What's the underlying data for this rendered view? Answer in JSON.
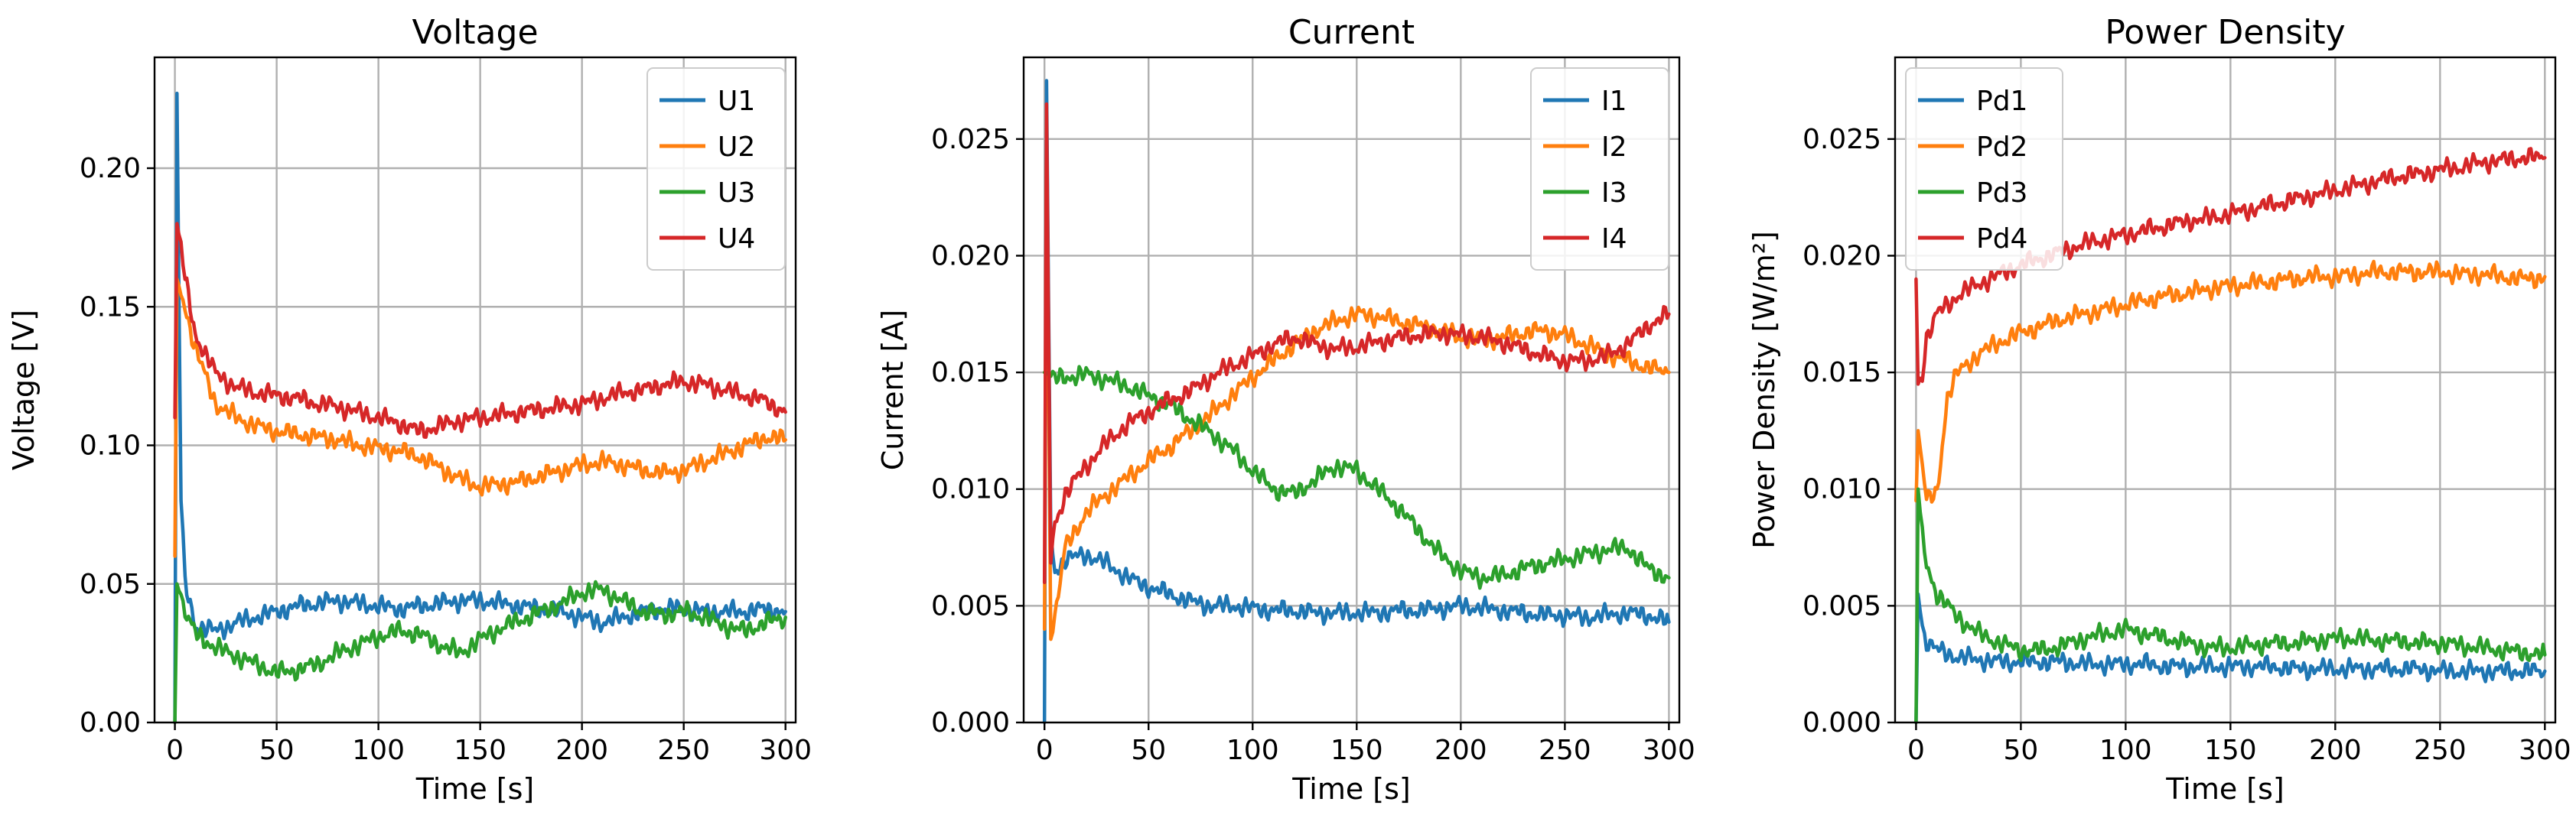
{
  "chart_data": [
    {
      "type": "line",
      "title": "Voltage",
      "xlabel": "Time [s]",
      "ylabel": "Voltage [V]",
      "xlim": [
        -10,
        305
      ],
      "ylim": [
        0,
        0.24
      ],
      "xticks": [
        0,
        50,
        100,
        150,
        200,
        250,
        300
      ],
      "yticks": [
        0.0,
        0.05,
        0.1,
        0.15,
        0.2
      ],
      "ytick_labels": [
        "0.00",
        "0.05",
        "0.10",
        "0.15",
        "0.20"
      ],
      "grid": true,
      "legend": "top-right",
      "series": [
        {
          "name": "U1",
          "color": "#1f77b4",
          "x": [
            0,
            1,
            3,
            5,
            10,
            20,
            30,
            40,
            50,
            60,
            70,
            80,
            90,
            100,
            110,
            120,
            130,
            140,
            150,
            160,
            170,
            180,
            190,
            200,
            210,
            220,
            230,
            240,
            250,
            260,
            270,
            280,
            290,
            300
          ],
          "y": [
            0.0,
            0.227,
            0.08,
            0.05,
            0.035,
            0.033,
            0.036,
            0.038,
            0.04,
            0.042,
            0.043,
            0.044,
            0.043,
            0.042,
            0.041,
            0.042,
            0.043,
            0.044,
            0.044,
            0.043,
            0.042,
            0.041,
            0.04,
            0.038,
            0.036,
            0.038,
            0.04,
            0.041,
            0.041,
            0.04,
            0.04,
            0.04,
            0.041,
            0.04
          ]
        },
        {
          "name": "U2",
          "color": "#ff7f0e",
          "x": [
            0,
            1,
            3,
            5,
            10,
            20,
            30,
            40,
            50,
            60,
            70,
            80,
            90,
            100,
            110,
            120,
            130,
            140,
            150,
            160,
            170,
            180,
            190,
            200,
            210,
            220,
            230,
            240,
            250,
            260,
            270,
            280,
            290,
            300
          ],
          "y": [
            0.06,
            0.16,
            0.155,
            0.15,
            0.135,
            0.115,
            0.11,
            0.107,
            0.105,
            0.104,
            0.103,
            0.102,
            0.1,
            0.099,
            0.098,
            0.096,
            0.092,
            0.088,
            0.085,
            0.086,
            0.087,
            0.089,
            0.091,
            0.093,
            0.094,
            0.093,
            0.091,
            0.09,
            0.091,
            0.094,
            0.097,
            0.1,
            0.103,
            0.102
          ]
        },
        {
          "name": "U3",
          "color": "#2ca02c",
          "x": [
            0,
            1,
            3,
            5,
            10,
            20,
            30,
            40,
            50,
            60,
            70,
            80,
            90,
            100,
            110,
            120,
            130,
            140,
            150,
            160,
            170,
            180,
            190,
            200,
            210,
            220,
            230,
            240,
            250,
            260,
            270,
            280,
            290,
            300
          ],
          "y": [
            0.0,
            0.05,
            0.045,
            0.04,
            0.032,
            0.027,
            0.024,
            0.021,
            0.018,
            0.019,
            0.021,
            0.025,
            0.028,
            0.031,
            0.033,
            0.032,
            0.028,
            0.025,
            0.03,
            0.034,
            0.037,
            0.04,
            0.043,
            0.047,
            0.048,
            0.044,
            0.04,
            0.039,
            0.04,
            0.038,
            0.035,
            0.033,
            0.036,
            0.038
          ]
        },
        {
          "name": "U4",
          "color": "#d62728",
          "x": [
            0,
            1,
            3,
            5,
            10,
            20,
            30,
            40,
            50,
            60,
            70,
            80,
            90,
            100,
            110,
            120,
            130,
            140,
            150,
            160,
            170,
            180,
            190,
            200,
            210,
            220,
            230,
            240,
            250,
            260,
            270,
            280,
            290,
            300
          ],
          "y": [
            0.11,
            0.18,
            0.172,
            0.16,
            0.14,
            0.126,
            0.121,
            0.119,
            0.118,
            0.117,
            0.115,
            0.114,
            0.112,
            0.11,
            0.108,
            0.105,
            0.107,
            0.109,
            0.11,
            0.111,
            0.112,
            0.113,
            0.114,
            0.115,
            0.117,
            0.119,
            0.12,
            0.122,
            0.123,
            0.122,
            0.12,
            0.118,
            0.116,
            0.112
          ]
        }
      ]
    },
    {
      "type": "line",
      "title": "Current",
      "xlabel": "Time [s]",
      "ylabel": "Current [A]",
      "xlim": [
        -10,
        305
      ],
      "ylim": [
        0,
        0.0285
      ],
      "xticks": [
        0,
        50,
        100,
        150,
        200,
        250,
        300
      ],
      "yticks": [
        0.0,
        0.005,
        0.01,
        0.015,
        0.02,
        0.025
      ],
      "ytick_labels": [
        "0.000",
        "0.005",
        "0.010",
        "0.015",
        "0.020",
        "0.025"
      ],
      "grid": true,
      "legend": "top-right",
      "series": [
        {
          "name": "I1",
          "color": "#1f77b4",
          "x": [
            0,
            1,
            3,
            5,
            10,
            20,
            30,
            40,
            50,
            60,
            70,
            80,
            90,
            100,
            110,
            120,
            130,
            140,
            150,
            160,
            170,
            180,
            190,
            200,
            210,
            220,
            230,
            240,
            250,
            260,
            270,
            280,
            290,
            300
          ],
          "y": [
            0.0,
            0.0275,
            0.008,
            0.0065,
            0.007,
            0.0072,
            0.0068,
            0.0062,
            0.0058,
            0.0055,
            0.0052,
            0.005,
            0.005,
            0.0049,
            0.0048,
            0.0048,
            0.0047,
            0.0047,
            0.0047,
            0.0047,
            0.0048,
            0.0048,
            0.0049,
            0.005,
            0.0049,
            0.0048,
            0.0047,
            0.0046,
            0.0046,
            0.0045,
            0.0046,
            0.0047,
            0.0046,
            0.0043
          ]
        },
        {
          "name": "I2",
          "color": "#ff7f0e",
          "x": [
            0,
            1,
            3,
            5,
            10,
            20,
            30,
            40,
            50,
            60,
            70,
            80,
            90,
            100,
            110,
            120,
            130,
            140,
            150,
            160,
            170,
            180,
            190,
            200,
            210,
            220,
            230,
            240,
            250,
            260,
            270,
            280,
            290,
            300
          ],
          "y": [
            0.004,
            0.0255,
            0.004,
            0.0045,
            0.0075,
            0.009,
            0.0098,
            0.0105,
            0.0112,
            0.0118,
            0.0125,
            0.0132,
            0.014,
            0.0148,
            0.0155,
            0.0162,
            0.0168,
            0.0172,
            0.0175,
            0.0174,
            0.0172,
            0.017,
            0.0168,
            0.0165,
            0.0164,
            0.0165,
            0.0167,
            0.0168,
            0.0166,
            0.0162,
            0.0158,
            0.0155,
            0.0152,
            0.015
          ]
        },
        {
          "name": "I3",
          "color": "#2ca02c",
          "x": [
            0,
            1,
            3,
            5,
            10,
            20,
            30,
            40,
            50,
            60,
            70,
            80,
            90,
            100,
            110,
            120,
            130,
            140,
            150,
            160,
            170,
            180,
            190,
            200,
            210,
            220,
            230,
            240,
            250,
            260,
            270,
            280,
            290,
            300
          ],
          "y": [
            0.015,
            0.015,
            0.0148,
            0.0147,
            0.0148,
            0.0149,
            0.0147,
            0.0144,
            0.014,
            0.0136,
            0.013,
            0.0124,
            0.0117,
            0.0108,
            0.01,
            0.0098,
            0.0104,
            0.011,
            0.0108,
            0.01,
            0.0092,
            0.0082,
            0.0072,
            0.0065,
            0.0062,
            0.0063,
            0.0066,
            0.0068,
            0.007,
            0.0072,
            0.0074,
            0.0075,
            0.0066,
            0.0062
          ]
        },
        {
          "name": "I4",
          "color": "#d62728",
          "x": [
            0,
            1,
            3,
            5,
            10,
            20,
            30,
            40,
            50,
            60,
            70,
            80,
            90,
            100,
            110,
            120,
            130,
            140,
            150,
            160,
            170,
            180,
            190,
            200,
            210,
            220,
            230,
            240,
            250,
            260,
            270,
            280,
            290,
            300
          ],
          "y": [
            0.006,
            0.0265,
            0.007,
            0.0085,
            0.0098,
            0.011,
            0.012,
            0.0128,
            0.0133,
            0.0138,
            0.0142,
            0.0148,
            0.0153,
            0.0157,
            0.0162,
            0.0165,
            0.0162,
            0.016,
            0.0161,
            0.0163,
            0.0165,
            0.0166,
            0.0167,
            0.0166,
            0.0165,
            0.0163,
            0.016,
            0.0157,
            0.0155,
            0.0155,
            0.0157,
            0.0162,
            0.017,
            0.0175
          ]
        }
      ]
    },
    {
      "type": "line",
      "title": "Power Density",
      "xlabel": "Time [s]",
      "ylabel": "Power Density [W/m²]",
      "xlim": [
        -10,
        305
      ],
      "ylim": [
        0,
        0.0285
      ],
      "xticks": [
        0,
        50,
        100,
        150,
        200,
        250,
        300
      ],
      "yticks": [
        0.0,
        0.005,
        0.01,
        0.015,
        0.02,
        0.025
      ],
      "ytick_labels": [
        "0.000",
        "0.005",
        "0.010",
        "0.015",
        "0.020",
        "0.025"
      ],
      "grid": true,
      "legend": "top-left",
      "series": [
        {
          "name": "Pd1",
          "color": "#1f77b4",
          "x": [
            0,
            1,
            3,
            5,
            10,
            20,
            30,
            40,
            50,
            60,
            70,
            80,
            90,
            100,
            110,
            120,
            130,
            140,
            150,
            160,
            170,
            180,
            190,
            200,
            210,
            220,
            230,
            240,
            250,
            260,
            270,
            280,
            290,
            300
          ],
          "y": [
            0.0,
            0.0055,
            0.004,
            0.0035,
            0.0031,
            0.0028,
            0.0027,
            0.0026,
            0.0026,
            0.0026,
            0.0026,
            0.0025,
            0.0025,
            0.0025,
            0.0025,
            0.0024,
            0.0024,
            0.0024,
            0.0024,
            0.0024,
            0.0024,
            0.0023,
            0.0023,
            0.0023,
            0.0023,
            0.0023,
            0.0023,
            0.0023,
            0.0022,
            0.0022,
            0.0022,
            0.0022,
            0.0022,
            0.0022
          ]
        },
        {
          "name": "Pd2",
          "color": "#ff7f0e",
          "x": [
            0,
            1,
            3,
            5,
            10,
            15,
            20,
            30,
            40,
            50,
            60,
            70,
            80,
            90,
            100,
            110,
            120,
            130,
            140,
            150,
            160,
            170,
            180,
            190,
            200,
            210,
            220,
            230,
            240,
            250,
            260,
            270,
            280,
            290,
            300
          ],
          "y": [
            0.0095,
            0.0125,
            0.011,
            0.0095,
            0.0098,
            0.014,
            0.015,
            0.0158,
            0.0163,
            0.0167,
            0.017,
            0.0173,
            0.0175,
            0.0177,
            0.0179,
            0.0181,
            0.0183,
            0.0184,
            0.0186,
            0.0187,
            0.0188,
            0.0189,
            0.019,
            0.0191,
            0.0191,
            0.0192,
            0.0193,
            0.0193,
            0.0193,
            0.0193,
            0.0192,
            0.0192,
            0.0191,
            0.019,
            0.0191
          ]
        },
        {
          "name": "Pd3",
          "color": "#2ca02c",
          "x": [
            0,
            1,
            3,
            5,
            10,
            20,
            30,
            40,
            50,
            60,
            70,
            80,
            90,
            100,
            110,
            120,
            130,
            140,
            150,
            160,
            170,
            180,
            190,
            200,
            210,
            220,
            230,
            240,
            250,
            260,
            270,
            280,
            290,
            300
          ],
          "y": [
            0.0,
            0.01,
            0.008,
            0.0068,
            0.0055,
            0.0045,
            0.0038,
            0.0034,
            0.0031,
            0.0031,
            0.0033,
            0.0036,
            0.0038,
            0.004,
            0.0038,
            0.0036,
            0.0034,
            0.0032,
            0.0032,
            0.0033,
            0.0034,
            0.0034,
            0.0035,
            0.0036,
            0.0036,
            0.0035,
            0.0035,
            0.0034,
            0.0034,
            0.0033,
            0.0032,
            0.0031,
            0.003,
            0.0029
          ]
        },
        {
          "name": "Pd4",
          "color": "#d62728",
          "x": [
            0,
            1,
            3,
            5,
            10,
            20,
            30,
            40,
            50,
            60,
            70,
            80,
            90,
            100,
            110,
            120,
            130,
            140,
            150,
            160,
            170,
            180,
            190,
            200,
            210,
            220,
            230,
            240,
            250,
            260,
            270,
            280,
            290,
            300
          ],
          "y": [
            0.019,
            0.0145,
            0.015,
            0.0165,
            0.0175,
            0.0183,
            0.0188,
            0.0192,
            0.0196,
            0.0199,
            0.0202,
            0.0205,
            0.0207,
            0.0209,
            0.0211,
            0.0213,
            0.0215,
            0.0216,
            0.0218,
            0.022,
            0.0222,
            0.0224,
            0.0226,
            0.0228,
            0.023,
            0.0232,
            0.0234,
            0.0235,
            0.0237,
            0.0238,
            0.024,
            0.0241,
            0.0242,
            0.0242
          ]
        }
      ]
    }
  ]
}
